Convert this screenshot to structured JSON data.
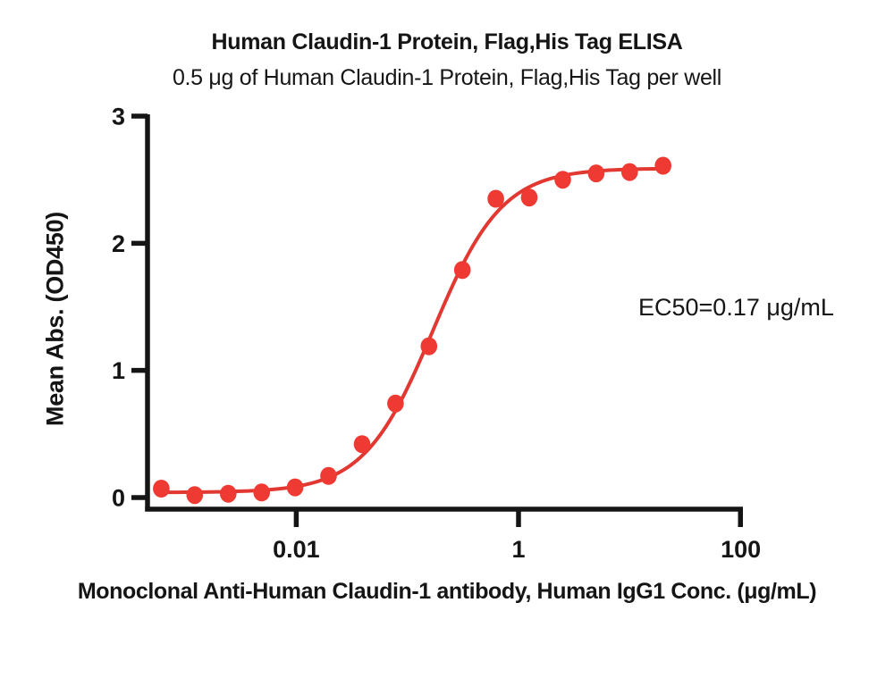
{
  "colors": {
    "marker": "#ee3a33",
    "curve": "#e23832",
    "axis": "#151515",
    "text": "#151515",
    "background": "#ffffff"
  },
  "chart_data": {
    "type": "scatter",
    "title": "Human Claudin-1 Protein, Flag,His Tag ELISA",
    "subtitle": "0.5 μg of Human Claudin-1 Protein, Flag,His Tag per well",
    "xlabel": "Monoclonal Anti-Human Claudin-1 antibody, Human IgG1 Conc. (μg/mL)",
    "ylabel": "Mean Abs. (OD450)",
    "xscale": "log",
    "xlim": [
      0.00045,
      100
    ],
    "ylim": [
      0,
      3
    ],
    "xticks": [
      0.01,
      1,
      100
    ],
    "xtick_labels": [
      "0.01",
      "1",
      "100"
    ],
    "yticks": [
      0,
      1,
      2,
      3
    ],
    "ytick_labels": [
      "0",
      "1",
      "2",
      "3"
    ],
    "grid": false,
    "legend": null,
    "series": [
      {
        "name": "Human Claudin-1 Protein, Flag,His Tag",
        "x": [
          0.00061,
          0.00122,
          0.00244,
          0.00488,
          0.00977,
          0.01953,
          0.03906,
          0.07813,
          0.15625,
          0.3125,
          0.625,
          1.25,
          2.5,
          5,
          10,
          20
        ],
        "y": [
          0.07,
          0.02,
          0.03,
          0.04,
          0.08,
          0.17,
          0.42,
          0.74,
          1.19,
          1.79,
          2.35,
          2.36,
          2.5,
          2.55,
          2.56,
          2.61
        ]
      }
    ],
    "fit_curve": {
      "model": "4PL",
      "bottom": 0.04,
      "top": 2.59,
      "ec50": 0.17,
      "hill": 1.4
    },
    "ec50_annotation": "EC50=0.17 μg/mL"
  }
}
